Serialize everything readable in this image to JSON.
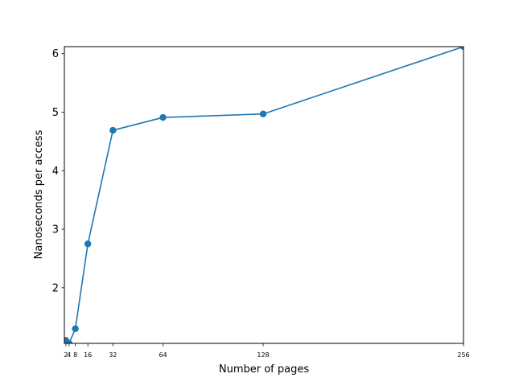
{
  "chart_data": {
    "type": "line",
    "title": "",
    "xlabel": "Number of pages",
    "ylabel": "Nanoseconds per access",
    "x": [
      1,
      2,
      4,
      8,
      16,
      32,
      64,
      128,
      256
    ],
    "series": [
      {
        "values": [
          1.1,
          1.1,
          1.05,
          1.3,
          2.75,
          4.69,
          4.91,
          4.97,
          6.12
        ],
        "color": "#1f77b4",
        "marker": "circle"
      }
    ],
    "xlim": [
      1,
      256
    ],
    "ylim": [
      1.05,
      6.12
    ],
    "xticks": [
      2,
      4,
      8,
      16,
      32,
      64,
      128,
      256
    ],
    "xtick_labels": [
      "2",
      "4",
      "8",
      "16",
      "32",
      "64",
      "128",
      "256"
    ],
    "yticks": [
      2,
      3,
      4,
      5,
      6
    ],
    "ytick_labels": [
      "2",
      "3",
      "4",
      "5",
      "6"
    ],
    "grid": false,
    "legend": "none"
  }
}
